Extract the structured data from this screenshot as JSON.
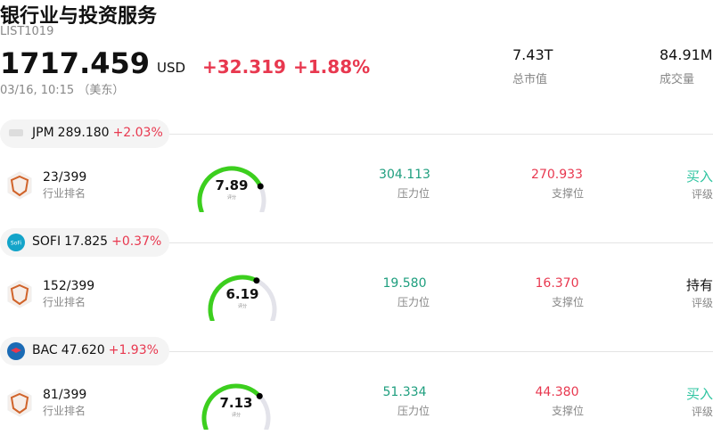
{
  "header": {
    "title": "银行业与投资服务",
    "code": "LIST1019",
    "price": "1717.459",
    "currency": "USD",
    "change": "+32.319",
    "change_pct": "+1.88%",
    "time": "03/16, 10:15 （美东）",
    "stats": [
      {
        "value": "7.43T",
        "label": "总市值"
      },
      {
        "value": "84.91M",
        "label": "成交量"
      }
    ]
  },
  "stocks": [
    {
      "symbol": "JPM",
      "price": "289.180",
      "change_pct": "+2.03%",
      "rank": "23/399",
      "rank_label": "行业排名",
      "score": 7.89,
      "score_label": "评分",
      "resistance": "304.113",
      "resistance_label": "压力位",
      "support": "270.933",
      "support_label": "支撑位",
      "rating": "买入",
      "rating_label": "评级"
    },
    {
      "symbol": "SOFI",
      "price": "17.825",
      "change_pct": "+0.37%",
      "rank": "152/399",
      "rank_label": "行业排名",
      "score": 6.19,
      "score_label": "评分",
      "resistance": "19.580",
      "resistance_label": "压力位",
      "support": "16.370",
      "support_label": "支撑位",
      "rating": "持有",
      "rating_label": "评级"
    },
    {
      "symbol": "BAC",
      "price": "47.620",
      "change_pct": "+1.93%",
      "rank": "81/399",
      "rank_label": "行业排名",
      "score": 7.13,
      "score_label": "评分",
      "resistance": "51.334",
      "resistance_label": "压力位",
      "support": "44.380",
      "support_label": "支撑位",
      "rating": "买入",
      "rating_label": "评级"
    }
  ]
}
